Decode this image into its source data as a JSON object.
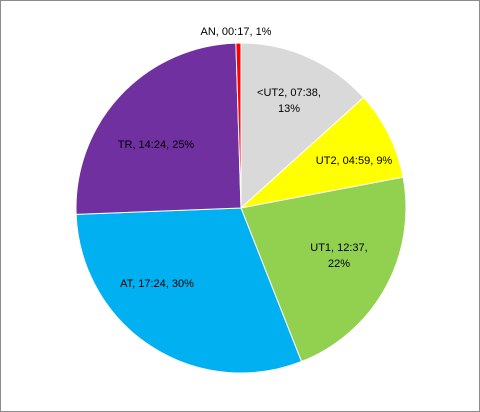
{
  "chart_data": {
    "type": "pie",
    "start_angle_deg": 0,
    "direction": "clockwise",
    "slices": [
      {
        "category": "<UT2",
        "value": 7.633,
        "label_lines": [
          "<UT2, 07:38,",
          "13%"
        ],
        "color": "#d9d9d9"
      },
      {
        "category": "UT2",
        "value": 4.983,
        "label_lines": [
          "UT2, 04:59, 9%"
        ],
        "color": "#ffff00"
      },
      {
        "category": "UT1",
        "value": 12.617,
        "label_lines": [
          "UT1, 12:37,",
          "22%"
        ],
        "color": "#92d050"
      },
      {
        "category": "AT",
        "value": 17.4,
        "label_lines": [
          "AT, 17:24, 30%"
        ],
        "color": "#00b0f0"
      },
      {
        "category": "TR",
        "value": 14.4,
        "label_lines": [
          "TR, 14:24, 25%"
        ],
        "color": "#7030a0"
      },
      {
        "category": "AN",
        "value": 0.283,
        "label_lines": [
          "AN, 00:17, 1%"
        ],
        "color": "#ff0000"
      }
    ]
  }
}
